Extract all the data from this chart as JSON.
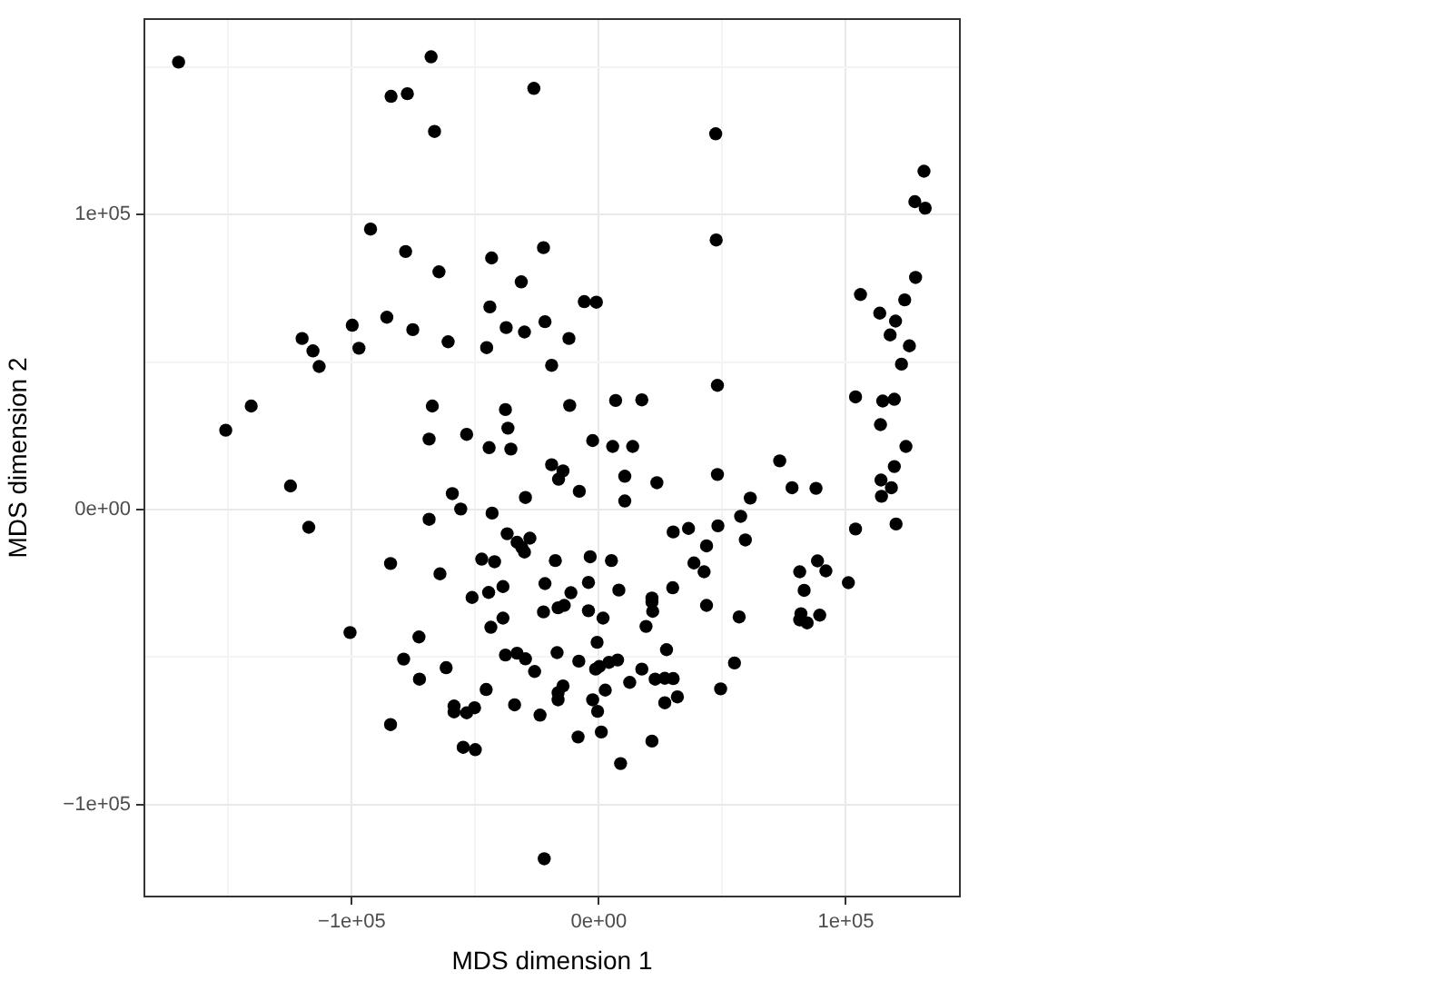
{
  "chart_data": {
    "type": "scatter",
    "xlabel": "MDS dimension 1",
    "ylabel": "MDS dimension 2",
    "color": "#000000",
    "marker": "circle",
    "grid": true,
    "xlim": [
      -184300,
      146500
    ],
    "ylim": [
      -131500,
      166600
    ],
    "xticks": [
      {
        "value": -150000,
        "label": null
      },
      {
        "value": -100000,
        "label": "−1e+05"
      },
      {
        "value": -50000,
        "label": null
      },
      {
        "value": 0,
        "label": "0e+00"
      },
      {
        "value": 50000,
        "label": null
      },
      {
        "value": 100000,
        "label": "1e+05"
      }
    ],
    "yticks": [
      {
        "value": -100000,
        "label": "−1e+05"
      },
      {
        "value": -50000,
        "label": null
      },
      {
        "value": 0,
        "label": "0e+00"
      },
      {
        "value": 50000,
        "label": null
      },
      {
        "value": 100000,
        "label": "1e+05"
      },
      {
        "value": 150000,
        "label": null
      }
    ],
    "x": [
      -170100,
      -67900,
      -84100,
      -77500,
      -66500,
      -26300,
      47300,
      47500,
      131600,
      127900,
      132100,
      128200,
      105900,
      123800,
      -5900,
      -1000,
      -92400,
      -78200,
      -64700,
      -43400,
      -22400,
      -31400,
      -44100,
      -99800,
      -85800,
      -75300,
      -61000,
      -45400,
      -37500,
      -30100,
      -21800,
      -120100,
      -115700,
      -113200,
      -97100,
      -19100,
      -140700,
      -151000,
      -67400,
      -37800,
      -36800,
      -68700,
      -53500,
      -44400,
      -35600,
      -19100,
      -16300,
      -124800,
      -59300,
      -29700,
      -55900,
      -43200,
      -117400,
      -68700,
      -37100,
      -33100,
      -27900,
      -30100,
      -31200,
      -17600,
      -84300,
      -64300,
      -47400,
      -42200,
      -38800,
      -44600,
      -51300,
      -21800,
      -12100,
      -11800,
      6800,
      17400,
      48000,
      -2500,
      5600,
      13700,
      -14500,
      -7900,
      10500,
      23500,
      10500,
      48000,
      73200,
      78200,
      87900,
      61300,
      57400,
      48200,
      30100,
      36300,
      43600,
      59300,
      38500,
      42600,
      81300,
      88500,
      91900,
      83100,
      101000,
      103900,
      120300,
      103900,
      114900,
      119600,
      114000,
      124300,
      119600,
      114200,
      118400,
      114400,
      113700,
      120100,
      117900,
      125700,
      122500,
      -3500,
      5100,
      -4200,
      -11300,
      8100,
      21500,
      29900,
      -22400,
      -16500,
      -100700,
      -72800,
      -43700,
      -38800,
      -79000,
      -72600,
      -61800,
      -37800,
      -33100,
      -29700,
      -26000,
      -16900,
      -45600,
      -58600,
      -58600,
      -53500,
      -50300,
      -34100,
      -23800,
      -16500,
      -16500,
      -84300,
      -54900,
      -50000,
      -22100,
      -14000,
      -4200,
      1700,
      21500,
      21800,
      19100,
      43600,
      56800,
      81800,
      81300,
      84300,
      89400,
      -8100,
      -700,
      -1300,
      200,
      4100,
      7600,
      17400,
      27400,
      22800,
      26700,
      30100,
      12500,
      2600,
      -14500,
      -2500,
      -500,
      26700,
      31800,
      49300,
      54900,
      -8400,
      1000,
      21500,
      8800
    ],
    "values": [
      151700,
      153500,
      140100,
      141000,
      128200,
      142800,
      127400,
      91400,
      114700,
      104400,
      102200,
      78700,
      72900,
      71100,
      70500,
      70300,
      95100,
      87500,
      80600,
      85300,
      88800,
      77200,
      68700,
      62500,
      65200,
      61000,
      56900,
      54900,
      61700,
      60200,
      63700,
      58000,
      53800,
      48500,
      54700,
      48900,
      35100,
      26900,
      35100,
      33900,
      27600,
      23900,
      25500,
      21000,
      20500,
      15200,
      10300,
      8000,
      5400,
      4100,
      200,
      -1200,
      -6000,
      -3300,
      -8200,
      -11100,
      -9700,
      -14400,
      -12800,
      -17300,
      -18300,
      -21800,
      -16800,
      -17700,
      -26100,
      -28100,
      -29800,
      -25100,
      58000,
      35300,
      37000,
      37200,
      42100,
      23400,
      21400,
      21400,
      13100,
      6200,
      11300,
      9100,
      2900,
      11900,
      16500,
      7400,
      7200,
      3900,
      -2300,
      -5500,
      -7600,
      -6400,
      -12300,
      -10300,
      -18100,
      -21100,
      -21100,
      -17400,
      -20800,
      -27400,
      -24800,
      -6600,
      -4900,
      38200,
      36800,
      37400,
      28800,
      21400,
      14600,
      10000,
      7400,
      4500,
      66600,
      63900,
      59200,
      55500,
      49300,
      -16000,
      -17300,
      -24700,
      -28200,
      -27300,
      -30000,
      -26500,
      -34700,
      -33300,
      -41700,
      -43200,
      -39900,
      -36800,
      -50700,
      -57500,
      -53600,
      -49300,
      -48700,
      -50600,
      -54900,
      -48500,
      -61000,
      -66600,
      -68600,
      -68900,
      -67200,
      -66200,
      -69700,
      -62100,
      -64500,
      -72900,
      -80600,
      -81400,
      -118400,
      -32500,
      -34300,
      -36800,
      -31300,
      -34500,
      -39600,
      -32500,
      -36400,
      -35300,
      -37400,
      -38400,
      -35800,
      -51400,
      -45000,
      -54100,
      -53200,
      -51800,
      -51000,
      -54100,
      -47500,
      -57500,
      -57200,
      -57300,
      -58600,
      -61200,
      -59800,
      -64500,
      -68400,
      -65500,
      -63500,
      -60800,
      -52000,
      -77100,
      -75400,
      -78500,
      -86100
    ]
  }
}
